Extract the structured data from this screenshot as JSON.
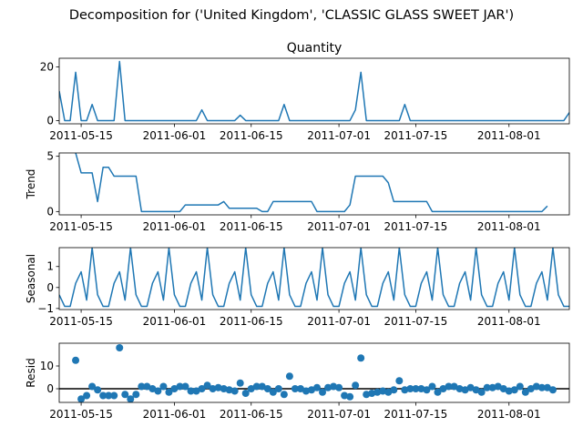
{
  "figure_title": "Decomposition for ('United Kingdom', 'CLASSIC GLASS SWEET JAR')",
  "chart_data": [
    {
      "type": "line",
      "title": "Quantity",
      "ylabel": "",
      "xlim": [
        "2011-05-11",
        "2011-08-12"
      ],
      "ylim": [
        -1.2,
        23.2
      ],
      "yticks": [
        0,
        20
      ],
      "xticks": [
        "2011-05-15",
        "2011-06-01",
        "2011-06-15",
        "2011-07-01",
        "2011-07-15",
        "2011-08-01"
      ],
      "color": "#1f77b4",
      "points": [
        [
          "2011-05-11",
          11
        ],
        [
          "2011-05-12",
          0
        ],
        [
          "2011-05-13",
          0
        ],
        [
          "2011-05-14",
          18
        ],
        [
          "2011-05-15",
          0
        ],
        [
          "2011-05-16",
          0
        ],
        [
          "2011-05-17",
          6
        ],
        [
          "2011-05-18",
          0
        ],
        [
          "2011-05-19",
          0
        ],
        [
          "2011-05-20",
          0
        ],
        [
          "2011-05-21",
          0
        ],
        [
          "2011-05-22",
          22
        ],
        [
          "2011-05-23",
          0
        ],
        [
          "2011-05-24",
          0
        ],
        [
          "2011-06-05",
          0
        ],
        [
          "2011-06-06",
          4
        ],
        [
          "2011-06-07",
          0
        ],
        [
          "2011-06-12",
          0
        ],
        [
          "2011-06-13",
          2
        ],
        [
          "2011-06-14",
          0
        ],
        [
          "2011-06-20",
          0
        ],
        [
          "2011-06-21",
          6
        ],
        [
          "2011-06-22",
          0
        ],
        [
          "2011-07-03",
          0
        ],
        [
          "2011-07-04",
          4
        ],
        [
          "2011-07-05",
          18
        ],
        [
          "2011-07-06",
          0
        ],
        [
          "2011-07-12",
          0
        ],
        [
          "2011-07-13",
          6
        ],
        [
          "2011-07-14",
          0
        ],
        [
          "2011-08-11",
          0
        ],
        [
          "2011-08-12",
          3
        ]
      ]
    },
    {
      "type": "line",
      "title": "",
      "ylabel": "Trend",
      "xlim": [
        "2011-05-11",
        "2011-08-12"
      ],
      "ylim": [
        -0.3,
        5.3
      ],
      "yticks": [
        0,
        5
      ],
      "xticks": [
        "2011-05-15",
        "2011-06-01",
        "2011-06-15",
        "2011-07-01",
        "2011-07-15",
        "2011-08-01"
      ],
      "color": "#1f77b4",
      "points": [
        [
          "2011-05-14",
          5.3
        ],
        [
          "2011-05-15",
          3.5
        ],
        [
          "2011-05-16",
          3.5
        ],
        [
          "2011-05-17",
          3.5
        ],
        [
          "2011-05-18",
          0.9
        ],
        [
          "2011-05-19",
          4.0
        ],
        [
          "2011-05-20",
          4.0
        ],
        [
          "2011-05-21",
          3.2
        ],
        [
          "2011-05-22",
          3.2
        ],
        [
          "2011-05-23",
          3.2
        ],
        [
          "2011-05-24",
          3.2
        ],
        [
          "2011-05-25",
          3.2
        ],
        [
          "2011-05-26",
          0
        ],
        [
          "2011-06-02",
          0
        ],
        [
          "2011-06-03",
          0.6
        ],
        [
          "2011-06-09",
          0.6
        ],
        [
          "2011-06-10",
          0.9
        ],
        [
          "2011-06-11",
          0.3
        ],
        [
          "2011-06-16",
          0.3
        ],
        [
          "2011-06-17",
          0
        ],
        [
          "2011-06-18",
          0
        ],
        [
          "2011-06-19",
          0.9
        ],
        [
          "2011-06-26",
          0.9
        ],
        [
          "2011-06-27",
          0
        ],
        [
          "2011-07-02",
          0
        ],
        [
          "2011-07-03",
          0.6
        ],
        [
          "2011-07-04",
          3.2
        ],
        [
          "2011-07-09",
          3.2
        ],
        [
          "2011-07-10",
          2.6
        ],
        [
          "2011-07-11",
          0.9
        ],
        [
          "2011-07-17",
          0.9
        ],
        [
          "2011-07-18",
          0
        ],
        [
          "2011-08-07",
          0
        ],
        [
          "2011-08-08",
          0.5
        ]
      ]
    },
    {
      "type": "line",
      "title": "",
      "ylabel": "Seasonal",
      "xlim": [
        "2011-05-11",
        "2011-08-12"
      ],
      "ylim": [
        -1.05,
        1.9
      ],
      "yticks": [
        -1,
        0,
        1
      ],
      "xticks": [
        "2011-05-15",
        "2011-06-01",
        "2011-06-15",
        "2011-07-01",
        "2011-07-15",
        "2011-08-01"
      ],
      "color": "#1f77b4",
      "start": "2011-05-11",
      "period_values": [
        -0.35,
        -0.9,
        -0.9,
        0.2,
        0.75,
        -0.6,
        1.9
      ],
      "end": "2011-08-12"
    },
    {
      "type": "scatter",
      "title": "",
      "ylabel": "Resid",
      "xlim": [
        "2011-05-11",
        "2011-08-12"
      ],
      "ylim": [
        -6,
        20
      ],
      "yticks": [
        0,
        10
      ],
      "xticks": [
        "2011-05-15",
        "2011-06-01",
        "2011-06-15",
        "2011-07-01",
        "2011-07-15",
        "2011-08-01"
      ],
      "color": "#1f77b4",
      "baseline": 0,
      "start": "2011-05-14",
      "values": [
        12.5,
        -4.5,
        -3,
        1,
        -0.5,
        -3,
        -3,
        -3,
        18,
        -2.5,
        -4.5,
        -2.5,
        1,
        1,
        0,
        -1,
        1,
        -1.5,
        0,
        1,
        1,
        -1,
        -1,
        0,
        1.5,
        0,
        0.5,
        0,
        -0.5,
        -1,
        2.5,
        -2,
        0,
        1,
        1,
        0,
        -1.5,
        0,
        -2.5,
        5.5,
        0,
        0,
        -1,
        -0.5,
        0.5,
        -1.5,
        0.5,
        1,
        0.5,
        -3,
        -3.5,
        1.5,
        13.5,
        -2.5,
        -2,
        -1.5,
        -1,
        -1.5,
        -0.5,
        3.5,
        -0.5,
        0,
        0,
        0,
        -0.5,
        1,
        -1.5,
        0,
        1,
        1,
        0,
        -0.5,
        0.5,
        -0.5,
        -1.5,
        0.5,
        0.5,
        1,
        0,
        -1,
        -0.5,
        1,
        -1.5,
        0,
        1,
        0.5,
        0.5,
        -0.5
      ]
    }
  ]
}
